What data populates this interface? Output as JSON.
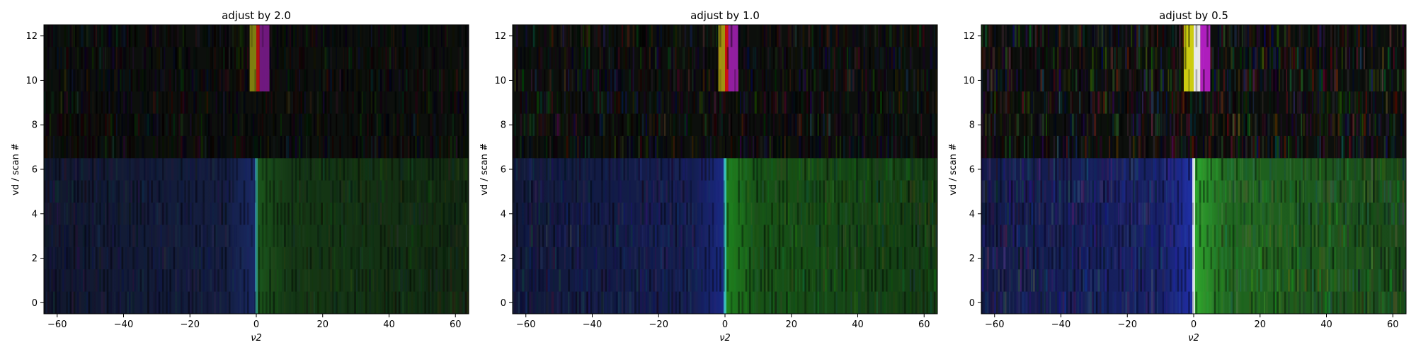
{
  "chart_data": [
    {
      "type": "heatmap",
      "title": "adjust by 2.0",
      "xlabel": "ν2",
      "ylabel": "vd / scan #",
      "xlim": [
        -64,
        64
      ],
      "ylim": [
        -0.5,
        12.5
      ],
      "xticks": [
        -60,
        -40,
        -20,
        0,
        20,
        40,
        60
      ],
      "yticks": [
        0,
        2,
        4,
        6,
        8,
        10,
        12
      ],
      "adjust_factor": 2.0,
      "colormap": "rgb composite",
      "features": [
        {
          "x_range": [
            -64,
            0
          ],
          "y_range": [
            -0.5,
            6.5
          ],
          "color": "#1a2a6a",
          "description": "blue region"
        },
        {
          "x_range": [
            0,
            64
          ],
          "y_range": [
            -0.5,
            6.5
          ],
          "color": "#1c5a1c",
          "description": "green region"
        },
        {
          "x_range": [
            -2,
            0
          ],
          "y_range": [
            9.5,
            12.5
          ],
          "color": "#8a8a10",
          "description": "yellow streak"
        },
        {
          "x_range": [
            0,
            1
          ],
          "y_range": [
            9.5,
            12.5
          ],
          "color": "#c01010",
          "description": "red streak"
        },
        {
          "x_range": [
            1,
            4
          ],
          "y_range": [
            9.5,
            12.5
          ],
          "color": "#7a1a8a",
          "description": "magenta streak"
        }
      ]
    },
    {
      "type": "heatmap",
      "title": "adjust by 1.0",
      "xlabel": "ν2",
      "ylabel": "vd / scan #",
      "xlim": [
        -64,
        64
      ],
      "ylim": [
        -0.5,
        12.5
      ],
      "xticks": [
        -60,
        -40,
        -20,
        0,
        20,
        40,
        60
      ],
      "yticks": [
        0,
        2,
        4,
        6,
        8,
        10,
        12
      ],
      "adjust_factor": 1.0,
      "colormap": "rgb composite",
      "features": [
        {
          "x_range": [
            -64,
            0
          ],
          "y_range": [
            -0.5,
            6.5
          ],
          "color": "#1a2a8a",
          "description": "blue region"
        },
        {
          "x_range": [
            0,
            64
          ],
          "y_range": [
            -0.5,
            6.5
          ],
          "color": "#208a20",
          "description": "green region"
        },
        {
          "x_range": [
            -2,
            0
          ],
          "y_range": [
            9.5,
            12.5
          ],
          "color": "#b0a010",
          "description": "yellow streak"
        },
        {
          "x_range": [
            0,
            1
          ],
          "y_range": [
            9.5,
            12.5
          ],
          "color": "#e01010",
          "description": "red streak"
        },
        {
          "x_range": [
            1,
            4
          ],
          "y_range": [
            9.5,
            12.5
          ],
          "color": "#a020b0",
          "description": "magenta streak"
        }
      ]
    },
    {
      "type": "heatmap",
      "title": "adjust by 0.5",
      "xlabel": "ν2",
      "ylabel": "vd / scan #",
      "xlim": [
        -64,
        64
      ],
      "ylim": [
        -0.5,
        12.5
      ],
      "xticks": [
        -60,
        -40,
        -20,
        0,
        20,
        40,
        60
      ],
      "yticks": [
        0,
        2,
        4,
        6,
        8,
        10,
        12
      ],
      "adjust_factor": 0.5,
      "colormap": "rgb composite",
      "features": [
        {
          "x_range": [
            -64,
            0
          ],
          "y_range": [
            -0.5,
            6.5
          ],
          "color": "#2030b0",
          "description": "blue region"
        },
        {
          "x_range": [
            0,
            64
          ],
          "y_range": [
            -0.5,
            6.5
          ],
          "color": "#30b030",
          "description": "green region"
        },
        {
          "x_range": [
            -3,
            0
          ],
          "y_range": [
            9.5,
            12.5
          ],
          "color": "#e0e010",
          "description": "yellow streak"
        },
        {
          "x_range": [
            0,
            2
          ],
          "y_range": [
            9.5,
            12.5
          ],
          "color": "#ffffff",
          "description": "white saturated streak"
        },
        {
          "x_range": [
            2,
            5
          ],
          "y_range": [
            9.5,
            12.5
          ],
          "color": "#c020d0",
          "description": "magenta streak"
        }
      ]
    }
  ]
}
